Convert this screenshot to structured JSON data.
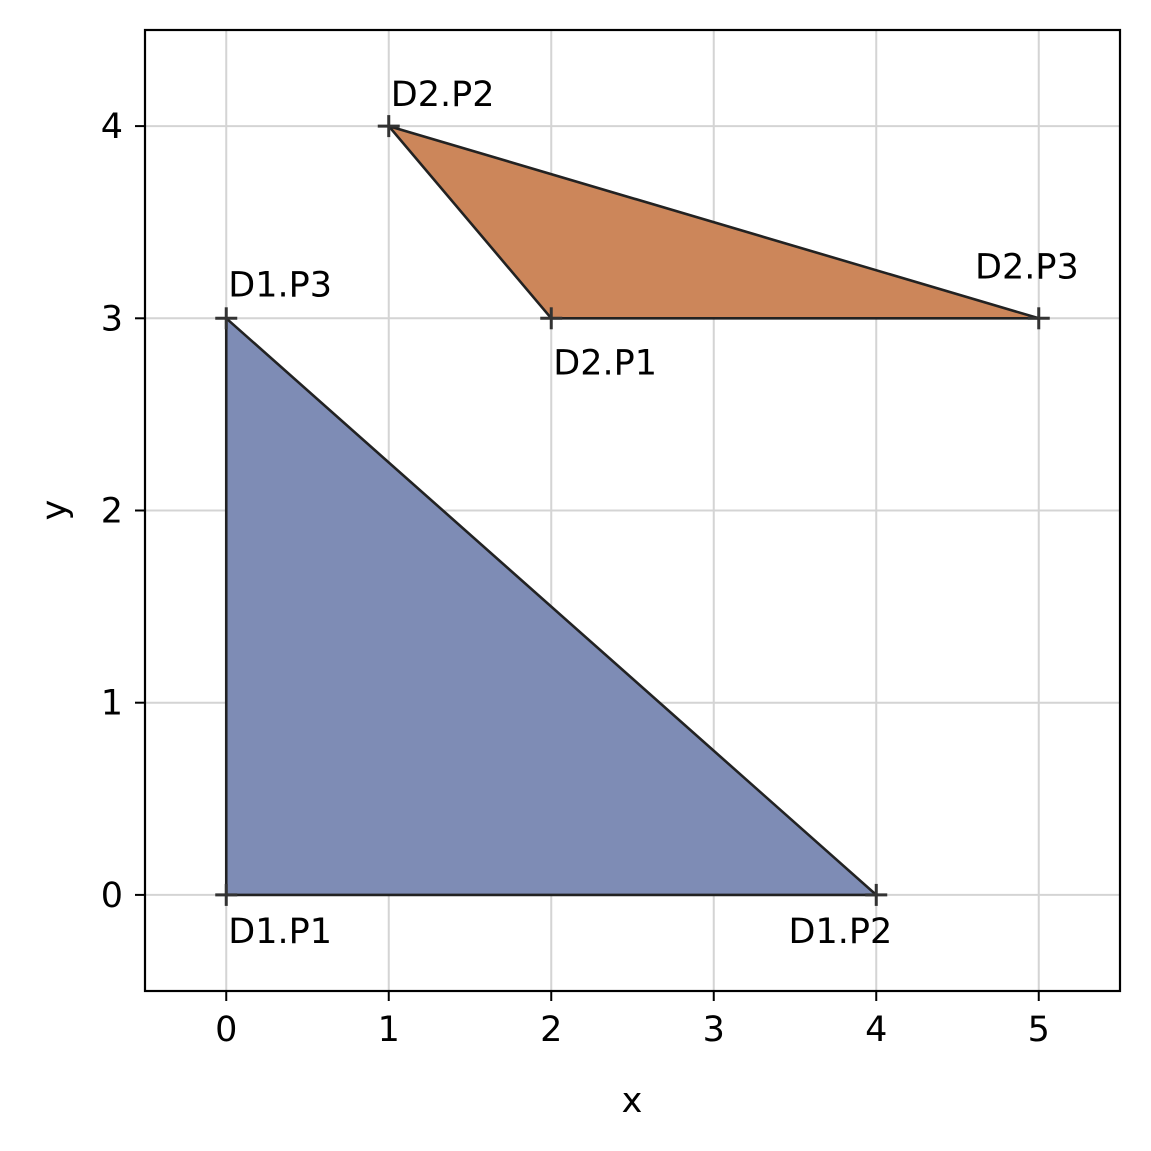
{
  "chart_data": {
    "type": "scatter",
    "title": "",
    "xlabel": "x",
    "ylabel": "y",
    "xlim": [
      -0.5,
      5.5
    ],
    "ylim": [
      -0.5,
      4.5
    ],
    "grid": true,
    "x_ticks": [
      0,
      1,
      2,
      3,
      4,
      5
    ],
    "y_ticks": [
      0,
      1,
      2,
      3,
      4
    ],
    "x_tick_labels": [
      "0",
      "1",
      "2",
      "3",
      "4",
      "5"
    ],
    "y_tick_labels": [
      "0",
      "1",
      "2",
      "3",
      "4"
    ],
    "shapes": [
      {
        "fill_color": "#7e8cb5",
        "points": [
          {
            "label": "D1.P1",
            "x": 0,
            "y": 0
          },
          {
            "label": "D1.P2",
            "x": 4,
            "y": 0
          },
          {
            "label": "D1.P3",
            "x": 0,
            "y": 3
          }
        ]
      },
      {
        "fill_color": "#cc865a",
        "points": [
          {
            "label": "D2.P1",
            "x": 2,
            "y": 3
          },
          {
            "label": "D2.P2",
            "x": 1,
            "y": 4
          },
          {
            "label": "D2.P3",
            "x": 5,
            "y": 3
          }
        ]
      }
    ]
  }
}
